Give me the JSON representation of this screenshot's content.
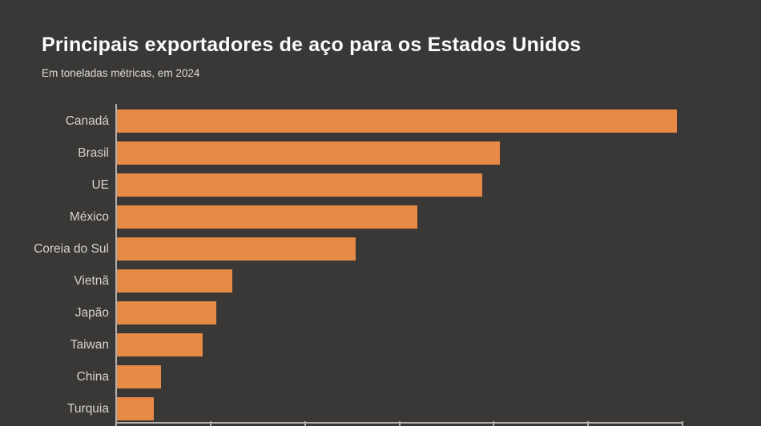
{
  "page": {
    "background_color": "#3a3836",
    "title": "Principais exportadores de aço para os Estados Unidos",
    "subtitle": "Em toneladas métricas, em 2024"
  },
  "chart_data": {
    "type": "bar",
    "orientation": "horizontal",
    "title": "Principais exportadores de aço para os Estados Unidos",
    "subtitle": "Em toneladas métricas, em 2024",
    "unit": "milhões de toneladas métricas",
    "categories": [
      "Canadá",
      "Brasil",
      "UE",
      "México",
      "Coreia do Sul",
      "Vietnã",
      "Japão",
      "Taiwan",
      "China",
      "Turquia"
    ],
    "values": [
      5.93,
      4.06,
      3.87,
      3.18,
      2.53,
      1.22,
      1.05,
      0.91,
      0.47,
      0.39
    ],
    "xlabel": "",
    "ylabel": "",
    "xlim": [
      0,
      6
    ],
    "x_tick_interval": 1,
    "x_tick_labels_visible": false,
    "grid": false,
    "legend": false,
    "bar_color": "#e78a45",
    "axis_color": "#b3b0ad",
    "label_color": "#d5d2cf",
    "background_color": "#3a3836"
  }
}
